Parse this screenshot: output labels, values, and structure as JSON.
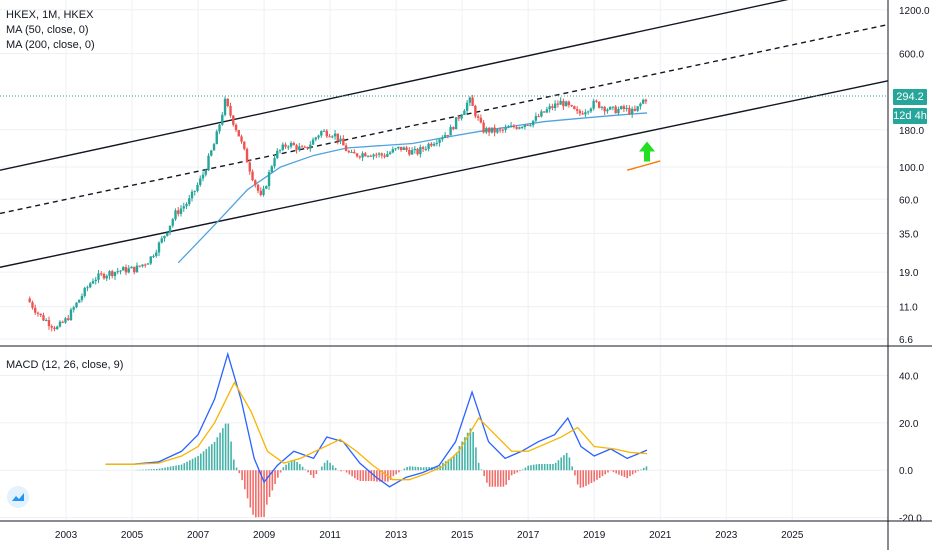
{
  "legend": {
    "symbol_line": "HKEX, 1M, HKEX",
    "ma50": "MA (50, close, 0)",
    "ma200": "MA (200, close, 0)",
    "macd": "MACD (12, 26, close, 9)"
  },
  "price_tag": {
    "price": "294.2",
    "countdown": "12d 4h",
    "price_color": "#26a69a",
    "countdown_color": "#26a69a"
  },
  "colors": {
    "up": "#26a69a",
    "down": "#ef5350",
    "ma": "#4fa3e0",
    "macd": "#2962ff",
    "signal": "#f7b500",
    "channel": "#131722",
    "arrow": "#21e021",
    "trendline": "#f57c00"
  },
  "chart_data": [
    {
      "type": "candlestick",
      "title": "HKEX, 1M, HKEX",
      "yscale": "log",
      "ylim": [
        6.0,
        1400
      ],
      "xlim": [
        2001.0,
        2027.9
      ],
      "y_ticks": [
        "1200.0",
        "600.0",
        "294.2",
        "180.0",
        "100.0",
        "60.0",
        "35.0",
        "19.0",
        "11.0",
        "6.6"
      ],
      "x_ticks": [
        "2003",
        "2005",
        "2007",
        "2009",
        "2011",
        "2013",
        "2015",
        "2017",
        "2019",
        "2021",
        "2023",
        "2025"
      ],
      "series": [
        {
          "name": "HKEX",
          "points": [
            [
              2001.9,
              12.5
            ],
            [
              2002.3,
              9.5
            ],
            [
              2002.8,
              7.8
            ],
            [
              2003.1,
              9.0
            ],
            [
              2003.5,
              12.5
            ],
            [
              2003.9,
              17.0
            ],
            [
              2004.3,
              18.5
            ],
            [
              2004.7,
              19.5
            ],
            [
              2005.2,
              20.0
            ],
            [
              2005.6,
              23.0
            ],
            [
              2006.0,
              32.0
            ],
            [
              2006.4,
              48.0
            ],
            [
              2006.8,
              58.0
            ],
            [
              2007.2,
              85.0
            ],
            [
              2007.6,
              150.0
            ],
            [
              2007.9,
              280.0
            ],
            [
              2008.3,
              170.0
            ],
            [
              2008.7,
              90.0
            ],
            [
              2009.0,
              60.0
            ],
            [
              2009.4,
              120.0
            ],
            [
              2009.8,
              145.0
            ],
            [
              2010.3,
              130.0
            ],
            [
              2010.8,
              175.0
            ],
            [
              2011.2,
              170.0
            ],
            [
              2011.7,
              120.0
            ],
            [
              2012.2,
              125.0
            ],
            [
              2012.7,
              120.0
            ],
            [
              2013.2,
              135.0
            ],
            [
              2013.7,
              125.0
            ],
            [
              2014.2,
              150.0
            ],
            [
              2014.7,
              175.0
            ],
            [
              2015.3,
              290.0
            ],
            [
              2015.7,
              180.0
            ],
            [
              2016.2,
              175.0
            ],
            [
              2016.7,
              190.0
            ],
            [
              2017.2,
              205.0
            ],
            [
              2017.7,
              250.0
            ],
            [
              2018.1,
              280.0
            ],
            [
              2018.6,
              230.0
            ],
            [
              2019.1,
              275.0
            ],
            [
              2019.6,
              245.0
            ],
            [
              2020.0,
              250.0
            ],
            [
              2020.3,
              235.0
            ],
            [
              2020.6,
              294.2
            ]
          ]
        },
        {
          "name": "MA 50",
          "points": [
            [
              2006.4,
              22.0
            ],
            [
              2007.5,
              40.0
            ],
            [
              2008.5,
              70.0
            ],
            [
              2009.5,
              100.0
            ],
            [
              2010.5,
              120.0
            ],
            [
              2011.5,
              135.0
            ],
            [
              2012.5,
              140.0
            ],
            [
              2013.5,
              145.0
            ],
            [
              2014.5,
              160.0
            ],
            [
              2015.5,
              175.0
            ],
            [
              2016.5,
              190.0
            ],
            [
              2017.5,
              205.0
            ],
            [
              2018.5,
              215.0
            ],
            [
              2019.5,
              225.0
            ],
            [
              2020.6,
              235.0
            ]
          ]
        }
      ],
      "lines": [
        {
          "name": "channel-upper",
          "from": [
            2001.0,
            95.0
          ],
          "to": [
            2025.1,
            1450.0
          ]
        },
        {
          "name": "channel-middle",
          "from": [
            2001.0,
            48.0
          ],
          "to": [
            2027.9,
            950.0
          ]
        },
        {
          "name": "channel-lower",
          "from": [
            2001.0,
            20.5
          ],
          "to": [
            2027.9,
            390.0
          ]
        }
      ]
    },
    {
      "type": "macd",
      "title": "MACD (12, 26, close, 9)",
      "ylim": [
        -21,
        52
      ],
      "y_ticks": [
        "40.0",
        "20.0",
        "0.0",
        "-20.0"
      ],
      "macd": [
        [
          2004.2,
          2.5
        ],
        [
          2005.0,
          2.5
        ],
        [
          2005.8,
          3.5
        ],
        [
          2006.5,
          8.0
        ],
        [
          2007.0,
          15.0
        ],
        [
          2007.5,
          30.0
        ],
        [
          2007.9,
          49.0
        ],
        [
          2008.3,
          30.0
        ],
        [
          2008.7,
          5.0
        ],
        [
          2009.0,
          -5.0
        ],
        [
          2009.4,
          2.0
        ],
        [
          2009.9,
          8.0
        ],
        [
          2010.5,
          5.0
        ],
        [
          2010.9,
          14.0
        ],
        [
          2011.4,
          12.0
        ],
        [
          2011.9,
          3.0
        ],
        [
          2012.4,
          -3.0
        ],
        [
          2012.8,
          -7.0
        ],
        [
          2013.3,
          -3.0
        ],
        [
          2013.8,
          -1.0
        ],
        [
          2014.3,
          2.0
        ],
        [
          2014.8,
          12.0
        ],
        [
          2015.3,
          33.0
        ],
        [
          2015.8,
          12.0
        ],
        [
          2016.3,
          5.0
        ],
        [
          2016.8,
          8.0
        ],
        [
          2017.3,
          12.0
        ],
        [
          2017.8,
          15.0
        ],
        [
          2018.2,
          22.0
        ],
        [
          2018.6,
          10.0
        ],
        [
          2019.0,
          6.0
        ],
        [
          2019.5,
          9.0
        ],
        [
          2020.0,
          5.0
        ],
        [
          2020.6,
          8.5
        ]
      ],
      "signal": [
        [
          2004.2,
          2.5
        ],
        [
          2005.0,
          2.5
        ],
        [
          2005.8,
          3.0
        ],
        [
          2006.5,
          6.0
        ],
        [
          2007.0,
          10.0
        ],
        [
          2007.5,
          20.0
        ],
        [
          2008.1,
          37.0
        ],
        [
          2008.6,
          25.0
        ],
        [
          2009.1,
          8.0
        ],
        [
          2009.6,
          3.0
        ],
        [
          2010.1,
          5.0
        ],
        [
          2010.7,
          9.0
        ],
        [
          2011.3,
          13.0
        ],
        [
          2011.8,
          8.0
        ],
        [
          2012.3,
          2.0
        ],
        [
          2012.9,
          -4.0
        ],
        [
          2013.4,
          -4.0
        ],
        [
          2013.9,
          -1.5
        ],
        [
          2014.4,
          1.5
        ],
        [
          2014.9,
          8.0
        ],
        [
          2015.5,
          22.0
        ],
        [
          2016.0,
          15.0
        ],
        [
          2016.5,
          8.0
        ],
        [
          2017.0,
          8.0
        ],
        [
          2017.5,
          11.0
        ],
        [
          2018.0,
          14.0
        ],
        [
          2018.5,
          18.0
        ],
        [
          2019.0,
          10.0
        ],
        [
          2019.6,
          9.0
        ],
        [
          2020.1,
          7.5
        ],
        [
          2020.6,
          7.0
        ]
      ]
    }
  ]
}
